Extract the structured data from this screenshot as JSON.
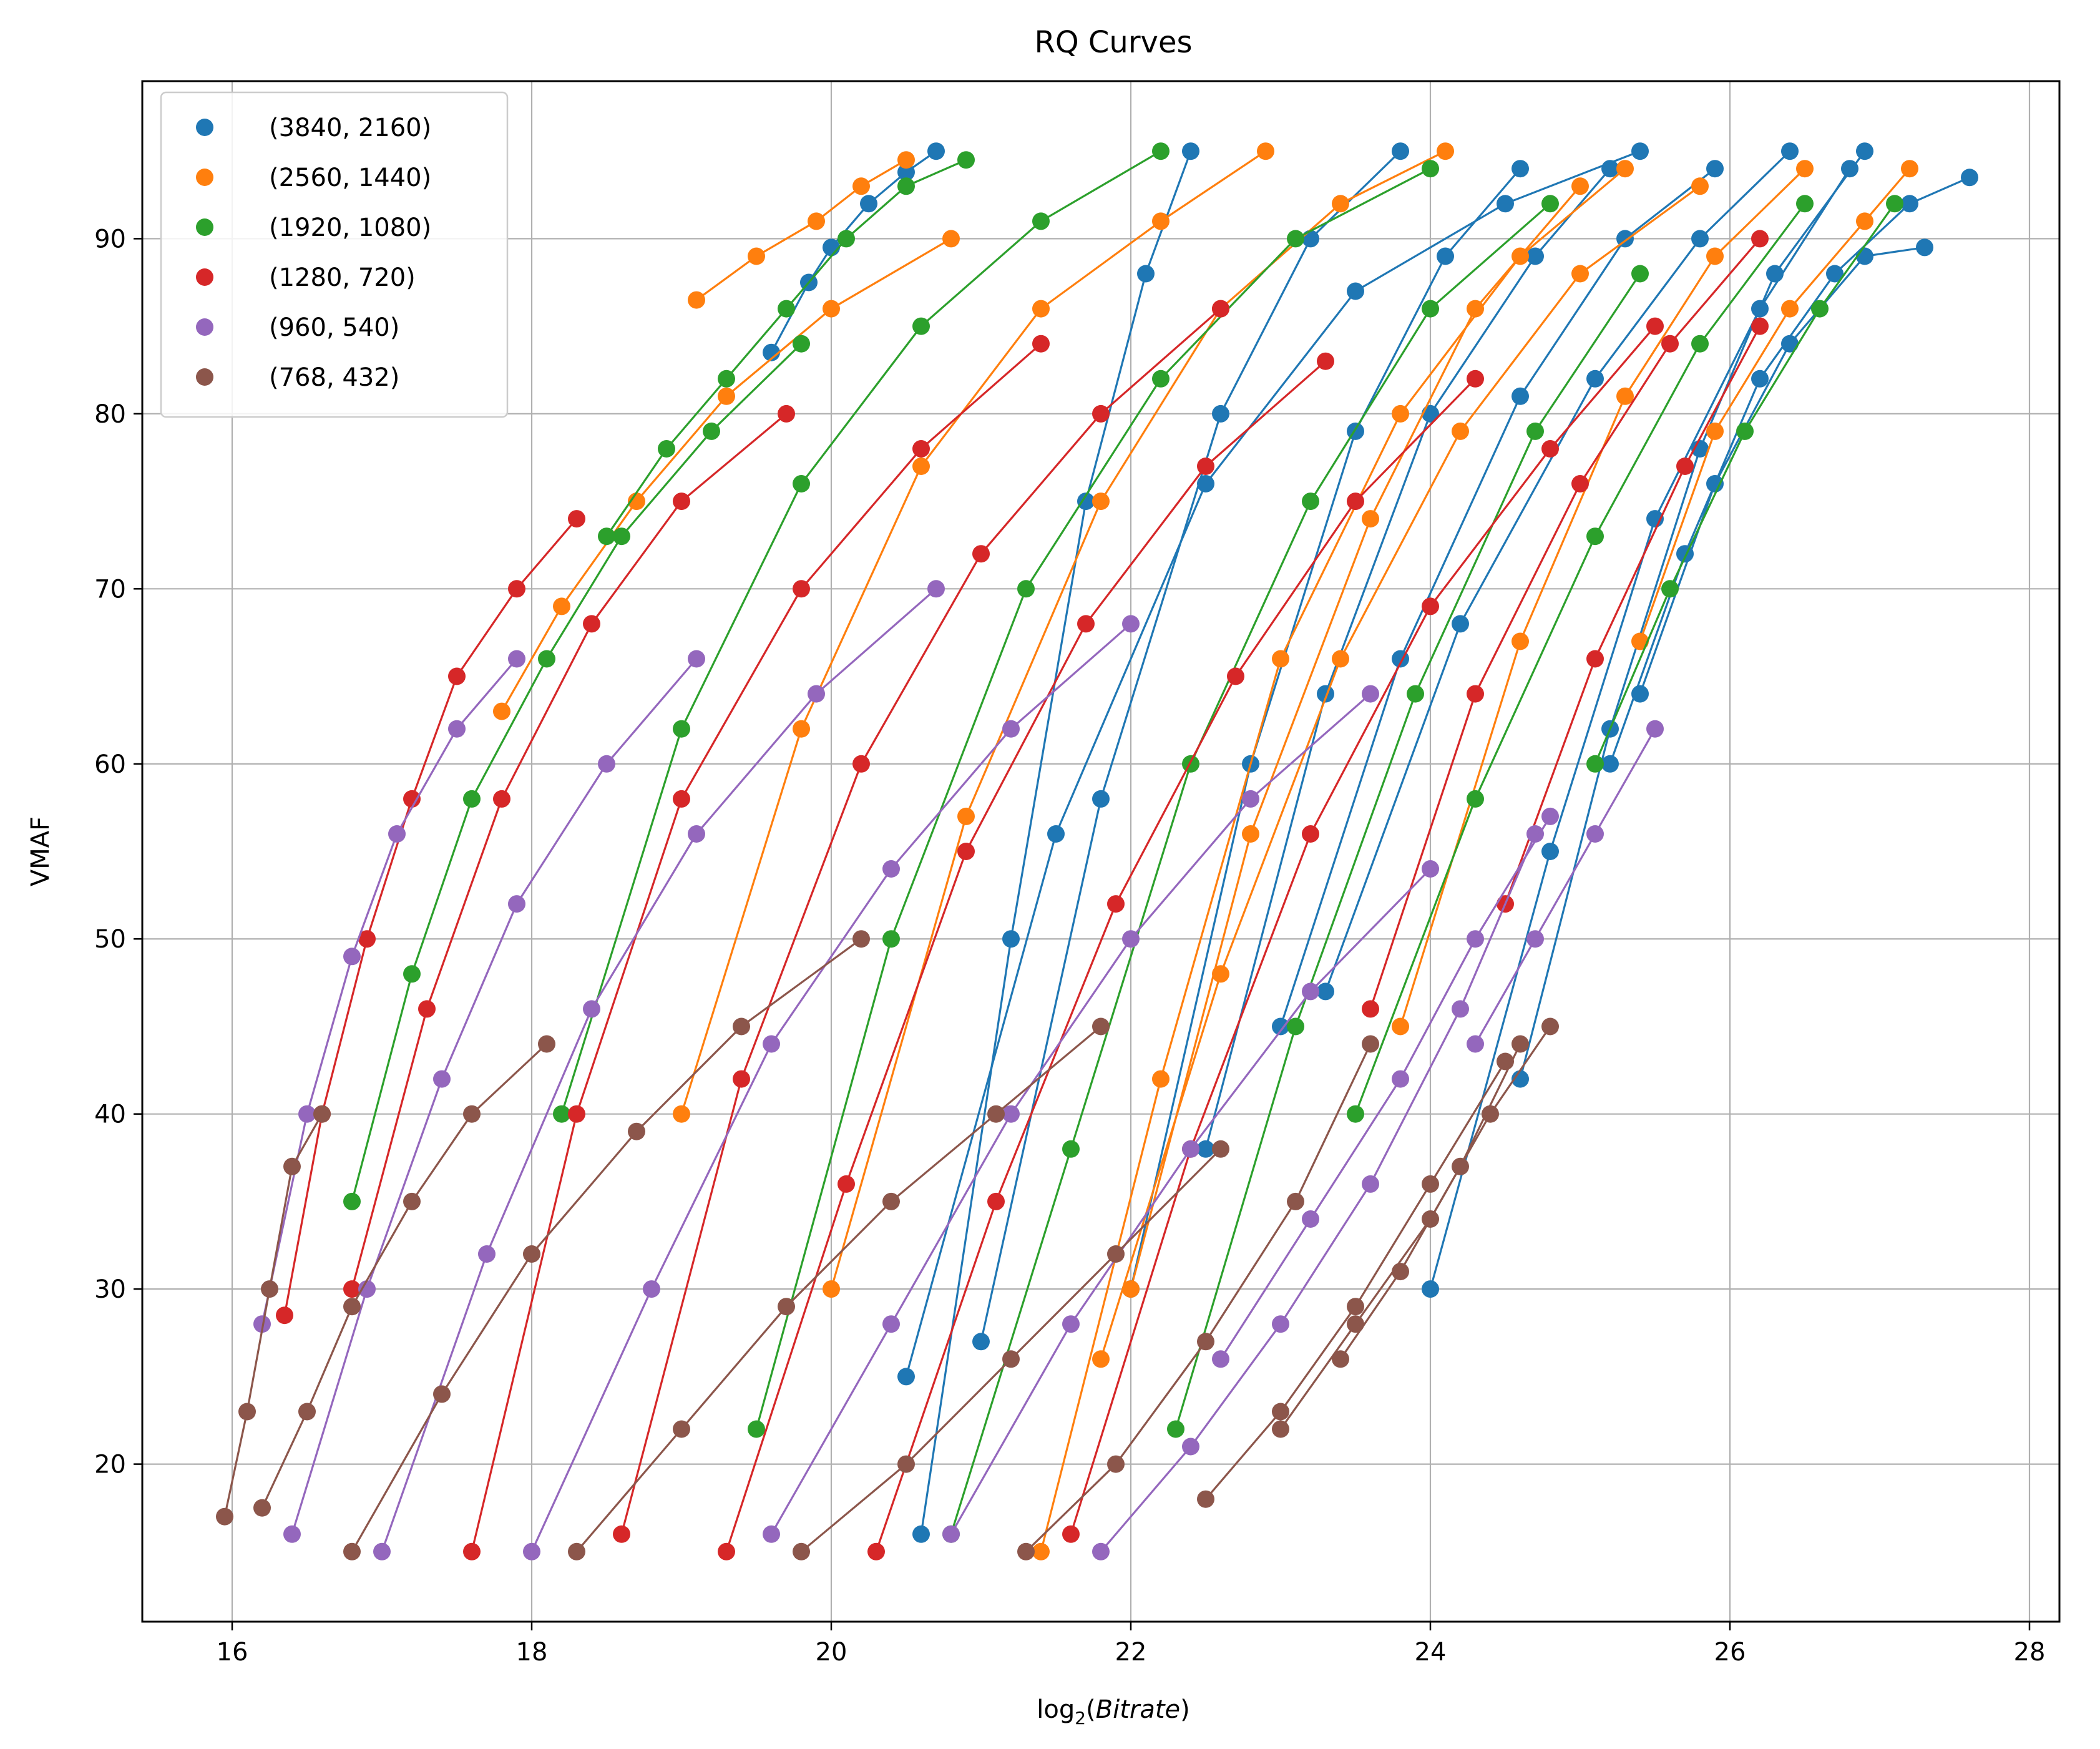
{
  "chart_data": {
    "type": "line",
    "title": "RQ Curves",
    "xlabel_prefix": "log",
    "xlabel_sub": "2",
    "xlabel_var": "Bitrate",
    "ylabel": "VMAF",
    "xlim": [
      15.4,
      28.2
    ],
    "ylim": [
      11,
      99
    ],
    "xticks": [
      16,
      18,
      20,
      22,
      24,
      26,
      28
    ],
    "yticks": [
      20,
      30,
      40,
      50,
      60,
      70,
      80,
      90
    ],
    "grid": true,
    "legend_position": "upper-left",
    "series": [
      {
        "name": "(3840, 2160)",
        "color": "#1f77b4",
        "curves": [
          {
            "x": [
              19.6,
              19.85,
              20.0,
              20.25,
              20.5,
              20.7
            ],
            "y": [
              83.5,
              87.5,
              89.5,
              92,
              93.8,
              95
            ]
          },
          {
            "x": [
              20.6,
              21.2,
              21.7,
              22.1,
              22.4
            ],
            "y": [
              16,
              50,
              75,
              88,
              95
            ]
          },
          {
            "x": [
              21.0,
              21.8,
              22.6,
              23.2,
              23.8
            ],
            "y": [
              27,
              58,
              80,
              90,
              95
            ]
          },
          {
            "x": [
              22.0,
              22.8,
              23.5,
              24.1,
              24.6
            ],
            "y": [
              30,
              60,
              79,
              89,
              94
            ]
          },
          {
            "x": [
              22.5,
              23.3,
              24.0,
              24.7,
              25.2
            ],
            "y": [
              38,
              64,
              80,
              89,
              94
            ]
          },
          {
            "x": [
              23.0,
              23.8,
              24.6,
              25.3,
              25.9
            ],
            "y": [
              45,
              66,
              81,
              90,
              94
            ]
          },
          {
            "x": [
              23.3,
              24.2,
              25.1,
              25.8,
              26.4
            ],
            "y": [
              47,
              68,
              82,
              90,
              95
            ]
          },
          {
            "x": [
              24.0,
              24.8,
              25.5,
              26.2,
              26.8
            ],
            "y": [
              30,
              55,
              74,
              86,
              94
            ]
          },
          {
            "x": [
              24.6,
              25.2,
              25.8,
              26.3,
              26.9
            ],
            "y": [
              42,
              62,
              78,
              88,
              95
            ]
          },
          {
            "x": [
              25.2,
              25.7,
              26.2,
              26.7,
              27.2,
              27.6
            ],
            "y": [
              60,
              72,
              82,
              88,
              92,
              93.5
            ]
          },
          {
            "x": [
              25.4,
              25.9,
              26.4,
              26.9,
              27.3
            ],
            "y": [
              64,
              76,
              84,
              89,
              89.5
            ]
          },
          {
            "x": [
              20.5,
              21.5,
              22.5,
              23.5,
              24.5,
              25.4
            ],
            "y": [
              25,
              56,
              76,
              87,
              92,
              95
            ]
          }
        ]
      },
      {
        "name": "(2560, 1440)",
        "color": "#ff7f0e",
        "curves": [
          {
            "x": [
              19.1,
              19.5,
              19.9,
              20.2,
              20.5
            ],
            "y": [
              86.5,
              89,
              91,
              93,
              94.5
            ]
          },
          {
            "x": [
              17.8,
              18.2,
              18.7,
              19.3,
              20.0,
              20.8
            ],
            "y": [
              63,
              69,
              75,
              81,
              86,
              90
            ]
          },
          {
            "x": [
              19.0,
              19.8,
              20.6,
              21.4,
              22.2,
              22.9
            ],
            "y": [
              40,
              62,
              77,
              86,
              91,
              95
            ]
          },
          {
            "x": [
              20.0,
              20.9,
              21.8,
              22.6,
              23.4,
              24.1
            ],
            "y": [
              30,
              57,
              75,
              86,
              92,
              95
            ]
          },
          {
            "x": [
              21.4,
              22.2,
              23.0,
              23.8,
              24.6,
              25.3
            ],
            "y": [
              15,
              42,
              66,
              80,
              89,
              94
            ]
          },
          {
            "x": [
              22.0,
              22.8,
              23.6,
              24.3,
              25.0
            ],
            "y": [
              30,
              56,
              74,
              86,
              93
            ]
          },
          {
            "x": [
              23.8,
              24.6,
              25.3,
              25.9,
              26.5
            ],
            "y": [
              45,
              67,
              81,
              89,
              94
            ]
          },
          {
            "x": [
              25.4,
              25.9,
              26.4,
              26.9,
              27.2
            ],
            "y": [
              67,
              79,
              86,
              91,
              94
            ]
          },
          {
            "x": [
              21.8,
              22.6,
              23.4,
              24.2,
              25.0,
              25.8
            ],
            "y": [
              26,
              48,
              66,
              79,
              88,
              93
            ]
          }
        ]
      },
      {
        "name": "(1920, 1080)",
        "color": "#2ca02c",
        "curves": [
          {
            "x": [
              18.5,
              18.9,
              19.3,
              19.7,
              20.1,
              20.5,
              20.9
            ],
            "y": [
              73,
              78,
              82,
              86,
              90,
              93,
              94.5
            ]
          },
          {
            "x": [
              16.8,
              17.2,
              17.6,
              18.1,
              18.6,
              19.2,
              19.8
            ],
            "y": [
              35,
              48,
              58,
              66,
              73,
              79,
              84
            ]
          },
          {
            "x": [
              18.2,
              19.0,
              19.8,
              20.6,
              21.4,
              22.2
            ],
            "y": [
              40,
              62,
              76,
              85,
              91,
              95
            ]
          },
          {
            "x": [
              19.5,
              20.4,
              21.3,
              22.2,
              23.1,
              24.0
            ],
            "y": [
              22,
              50,
              70,
              82,
              90,
              94
            ]
          },
          {
            "x": [
              20.8,
              21.6,
              22.4,
              23.2,
              24.0,
              24.8
            ],
            "y": [
              16,
              38,
              60,
              75,
              86,
              92
            ]
          },
          {
            "x": [
              22.3,
              23.1,
              23.9,
              24.7,
              25.4
            ],
            "y": [
              22,
              45,
              64,
              79,
              88
            ]
          },
          {
            "x": [
              23.5,
              24.3,
              25.1,
              25.8,
              26.5
            ],
            "y": [
              40,
              58,
              73,
              84,
              92
            ]
          },
          {
            "x": [
              25.1,
              25.6,
              26.1,
              26.6,
              27.1
            ],
            "y": [
              60,
              70,
              79,
              86,
              92
            ]
          }
        ]
      },
      {
        "name": "(1280, 720)",
        "color": "#d62728",
        "curves": [
          {
            "x": [
              16.35,
              16.6,
              16.9,
              17.2,
              17.5,
              17.9,
              18.3
            ],
            "y": [
              28.5,
              40,
              50,
              58,
              65,
              70,
              74
            ]
          },
          {
            "x": [
              16.8,
              17.3,
              17.8,
              18.4,
              19.0,
              19.7
            ],
            "y": [
              30,
              46,
              58,
              68,
              75,
              80
            ]
          },
          {
            "x": [
              17.6,
              18.3,
              19.0,
              19.8,
              20.6,
              21.4
            ],
            "y": [
              15,
              40,
              58,
              70,
              78,
              84
            ]
          },
          {
            "x": [
              18.6,
              19.4,
              20.2,
              21.0,
              21.8,
              22.6
            ],
            "y": [
              16,
              42,
              60,
              72,
              80,
              86
            ]
          },
          {
            "x": [
              19.3,
              20.1,
              20.9,
              21.7,
              22.5,
              23.3
            ],
            "y": [
              15,
              36,
              55,
              68,
              77,
              83
            ]
          },
          {
            "x": [
              20.3,
              21.1,
              21.9,
              22.7,
              23.5,
              24.3
            ],
            "y": [
              15,
              35,
              52,
              65,
              75,
              82
            ]
          },
          {
            "x": [
              21.6,
              22.4,
              23.2,
              24.0,
              24.8,
              25.5
            ],
            "y": [
              16,
              38,
              56,
              69,
              78,
              85
            ]
          },
          {
            "x": [
              23.6,
              24.3,
              25.0,
              25.6,
              26.2
            ],
            "y": [
              46,
              64,
              76,
              84,
              90
            ]
          },
          {
            "x": [
              24.5,
              25.1,
              25.7,
              26.2
            ],
            "y": [
              52,
              66,
              77,
              85
            ]
          }
        ]
      },
      {
        "name": "(960, 540)",
        "color": "#9467bd",
        "curves": [
          {
            "x": [
              16.2,
              16.5,
              16.8,
              17.1,
              17.5,
              17.9
            ],
            "y": [
              28,
              40,
              49,
              56,
              62,
              66
            ]
          },
          {
            "x": [
              16.4,
              16.9,
              17.4,
              17.9,
              18.5,
              19.1
            ],
            "y": [
              16,
              30,
              42,
              52,
              60,
              66
            ]
          },
          {
            "x": [
              17.0,
              17.7,
              18.4,
              19.1,
              19.9,
              20.7
            ],
            "y": [
              15,
              32,
              46,
              56,
              64,
              70
            ]
          },
          {
            "x": [
              18.0,
              18.8,
              19.6,
              20.4,
              21.2,
              22.0
            ],
            "y": [
              15,
              30,
              44,
              54,
              62,
              68
            ]
          },
          {
            "x": [
              19.6,
              20.4,
              21.2,
              22.0,
              22.8,
              23.6
            ],
            "y": [
              16,
              28,
              40,
              50,
              58,
              64
            ]
          },
          {
            "x": [
              20.8,
              21.6,
              22.4,
              23.2,
              24.0
            ],
            "y": [
              16,
              28,
              38,
              47,
              54
            ]
          },
          {
            "x": [
              21.8,
              22.4,
              23.0,
              23.6,
              24.2,
              24.7
            ],
            "y": [
              15,
              21,
              28,
              36,
              46,
              56
            ]
          },
          {
            "x": [
              22.6,
              23.2,
              23.8,
              24.3,
              24.8
            ],
            "y": [
              26,
              34,
              42,
              50,
              57
            ]
          },
          {
            "x": [
              24.3,
              24.7,
              25.1,
              25.5
            ],
            "y": [
              44,
              50,
              56,
              62
            ]
          }
        ]
      },
      {
        "name": "(768, 432)",
        "color": "#8c564b",
        "curves": [
          {
            "x": [
              15.95,
              16.1,
              16.25,
              16.4,
              16.6
            ],
            "y": [
              17,
              23,
              30,
              37,
              40
            ]
          },
          {
            "x": [
              16.2,
              16.5,
              16.8,
              17.2,
              17.6,
              18.1
            ],
            "y": [
              17.5,
              23,
              29,
              35,
              40,
              44
            ]
          },
          {
            "x": [
              16.8,
              17.4,
              18.0,
              18.7,
              19.4,
              20.2
            ],
            "y": [
              15,
              24,
              32,
              39,
              45,
              50
            ]
          },
          {
            "x": [
              18.3,
              19.0,
              19.7,
              20.4,
              21.1,
              21.8
            ],
            "y": [
              15,
              22,
              29,
              35,
              40,
              45
            ]
          },
          {
            "x": [
              19.8,
              20.5,
              21.2,
              21.9,
              22.6
            ],
            "y": [
              15,
              20,
              26,
              32,
              38
            ]
          },
          {
            "x": [
              21.3,
              21.9,
              22.5,
              23.1,
              23.6
            ],
            "y": [
              15,
              20,
              27,
              35,
              44
            ]
          },
          {
            "x": [
              22.5,
              23.0,
              23.5,
              24.0,
              24.5
            ],
            "y": [
              18,
              23,
              29,
              36,
              43
            ]
          },
          {
            "x": [
              23.0,
              23.5,
              24.0,
              24.4,
              24.8
            ],
            "y": [
              22,
              28,
              34,
              40,
              45
            ]
          },
          {
            "x": [
              23.4,
              23.8,
              24.2,
              24.6
            ],
            "y": [
              26,
              31,
              37,
              44
            ]
          }
        ]
      }
    ]
  }
}
